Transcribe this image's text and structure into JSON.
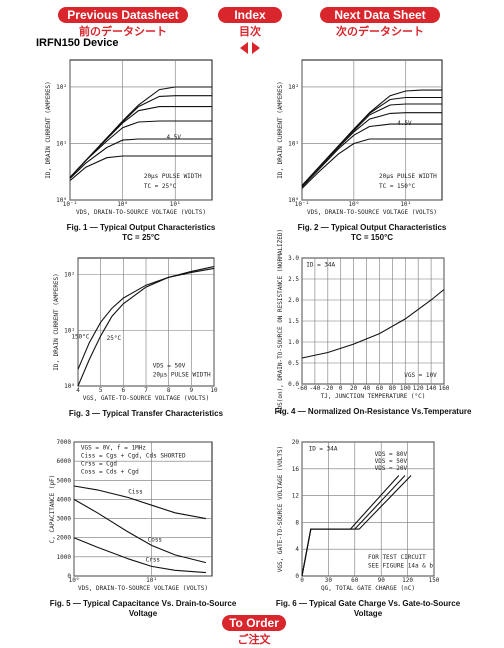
{
  "nav": {
    "previous": "Previous Datasheet",
    "previous_jp": "前のデータシート",
    "index": "Index",
    "index_jp": "目次",
    "next": "Next Data Sheet",
    "next_jp": "次のデータシート"
  },
  "device": "IRFN150 Device",
  "order": "To Order",
  "order_jp": "ご注文",
  "chart_data": [
    {
      "type": "line",
      "title": "Fig. 1 — Typical Output Characteristics",
      "subtitle": "TC = 25°C",
      "xlabel": "VDS, DRAIN-TO-SOURCE VOLTAGE (VOLTS)",
      "ylabel": "ID, DRAIN CURRENT (AMPERES)",
      "xlog": true,
      "ylog": true,
      "grid": true,
      "xlim": [
        0.1,
        50
      ],
      "ylim": [
        1,
        300
      ],
      "xticks": [
        {
          "value": 0.1,
          "label": "10⁻¹"
        },
        {
          "value": 1,
          "label": "10⁰"
        },
        {
          "value": 10,
          "label": "10¹"
        }
      ],
      "yticks": [
        {
          "value": 1,
          "label": "10⁰"
        },
        {
          "value": 10,
          "label": "10¹"
        },
        {
          "value": 100,
          "label": "10²"
        }
      ],
      "annotations": [
        "4.5V",
        "20μs PULSE WIDTH",
        "TC = 25°C"
      ],
      "x": [
        0.1,
        0.2,
        0.5,
        1,
        2,
        5,
        10,
        20,
        50
      ],
      "series": [
        {
          "color": "#111",
          "values": [
            2.2,
            3.8,
            5.6,
            6,
            6,
            6,
            6,
            6,
            6
          ]
        },
        {
          "color": "#111",
          "values": [
            2.4,
            4.5,
            8.5,
            11.5,
            12,
            12,
            12,
            12,
            12
          ]
        },
        {
          "color": "#111",
          "values": [
            2.5,
            5,
            11,
            19,
            24,
            25,
            25,
            25,
            25
          ]
        },
        {
          "color": "#111",
          "values": [
            2.5,
            5,
            12,
            23,
            38,
            45,
            45,
            45,
            45
          ]
        },
        {
          "color": "#111",
          "values": [
            2.5,
            5,
            12.5,
            24,
            45,
            68,
            70,
            70,
            70
          ]
        },
        {
          "color": "#111",
          "values": [
            2.5,
            5,
            12.5,
            25,
            48,
            90,
            100,
            100,
            100
          ]
        }
      ]
    },
    {
      "type": "line",
      "title": "Fig. 2 — Typical Output Characteristics",
      "subtitle": "TC = 150°C",
      "xlabel": "VDS, DRAIN-TO-SOURCE VOLTAGE (VOLTS)",
      "ylabel": "ID, DRAIN CURRENT (AMPERES)",
      "xlog": true,
      "ylog": true,
      "grid": true,
      "xlim": [
        0.1,
        50
      ],
      "ylim": [
        1,
        300
      ],
      "xticks": [
        {
          "value": 0.1,
          "label": "10⁻¹"
        },
        {
          "value": 1,
          "label": "10⁰"
        },
        {
          "value": 10,
          "label": "10¹"
        }
      ],
      "yticks": [
        {
          "value": 1,
          "label": "10⁰"
        },
        {
          "value": 10,
          "label": "10¹"
        },
        {
          "value": 100,
          "label": "10²"
        }
      ],
      "annotations": [
        "4.5V",
        "20μs PULSE WIDTH",
        "TC = 150°C"
      ],
      "x": [
        0.1,
        0.2,
        0.5,
        1,
        2,
        5,
        10,
        20,
        50
      ],
      "series": [
        {
          "color": "#111",
          "values": [
            1.6,
            3,
            6.5,
            10,
            12,
            12,
            12,
            12,
            12
          ]
        },
        {
          "color": "#111",
          "values": [
            1.7,
            3.3,
            8,
            14,
            20,
            22,
            22,
            22,
            22
          ]
        },
        {
          "color": "#111",
          "values": [
            1.8,
            3.5,
            8.5,
            16,
            27,
            34,
            35,
            35,
            35
          ]
        },
        {
          "color": "#111",
          "values": [
            1.8,
            3.6,
            9,
            17,
            32,
            48,
            50,
            50,
            50
          ]
        },
        {
          "color": "#111",
          "values": [
            1.8,
            3.6,
            9,
            18,
            34,
            60,
            65,
            65,
            65
          ]
        },
        {
          "color": "#111",
          "values": [
            1.8,
            3.6,
            9,
            18,
            35,
            70,
            85,
            88,
            88
          ]
        }
      ]
    },
    {
      "type": "line",
      "title": "Fig. 3 — Typical Transfer Characteristics",
      "xlabel": "VGS, GATE-TO-SOURCE VOLTAGE (VOLTS)",
      "ylabel": "ID, DRAIN CURRENT (AMPERES)",
      "ylog": true,
      "grid": true,
      "xlim": [
        4,
        10
      ],
      "ylim": [
        1,
        200
      ],
      "xticks": [
        4,
        5,
        6,
        7,
        8,
        9,
        10
      ],
      "yticks": [
        {
          "value": 1,
          "label": "10⁰"
        },
        {
          "value": 10,
          "label": "10¹"
        },
        {
          "value": 100,
          "label": "10²"
        }
      ],
      "annotations": [
        "VDS = 50V",
        "20μs PULSE WIDTH"
      ],
      "x": [
        4,
        4.5,
        5,
        5.5,
        6,
        7,
        8,
        9,
        10
      ],
      "series": [
        {
          "name": "150°C",
          "color": "#111",
          "values": [
            2,
            6,
            14,
            25,
            38,
            65,
            90,
            110,
            130
          ]
        },
        {
          "name": "25°C",
          "color": "#111",
          "values": [
            1,
            3,
            8,
            18,
            30,
            60,
            90,
            115,
            140
          ]
        }
      ]
    },
    {
      "type": "line",
      "title": "Fig. 4 — Normalized On-Resistance Vs.Temperature",
      "xlabel": "TJ, JUNCTION TEMPERATURE (°C)",
      "ylabel": "RDS(on), DRAIN-TO-SOURCE ON RESISTANCE (NORMALIZED)",
      "grid": true,
      "xlim": [
        -60,
        160
      ],
      "ylim": [
        0,
        3
      ],
      "xticks": [
        -60,
        -40,
        -20,
        0,
        20,
        40,
        60,
        80,
        100,
        120,
        140,
        160
      ],
      "yticks": [
        {
          "value": 0,
          "label": "0.0"
        },
        0.5,
        {
          "value": 1,
          "label": "1.0"
        },
        1.5,
        {
          "value": 2,
          "label": "2.0"
        },
        2.5,
        {
          "value": 3,
          "label": "3.0"
        }
      ],
      "annotations": [
        "ID = 34A",
        "VGS = 10V"
      ],
      "x": [
        -60,
        -20,
        20,
        60,
        100,
        140,
        160
      ],
      "series": [
        {
          "color": "#111",
          "values": [
            0.62,
            0.75,
            0.95,
            1.2,
            1.55,
            2.0,
            2.25
          ]
        }
      ]
    },
    {
      "type": "line",
      "title": "Fig. 5 — Typical Capacitance Vs. Drain-to-Source",
      "subtitle": "Voltage",
      "xlabel": "VDS, DRAIN-TO-SOURCE VOLTAGE (VOLTS)",
      "ylabel": "C, CAPACITANCE (pF)",
      "xlog": true,
      "grid": true,
      "xlim": [
        1,
        60
      ],
      "ylim": [
        0,
        7000
      ],
      "xticks": [
        {
          "value": 1,
          "label": "10⁰"
        },
        {
          "value": 10,
          "label": "10¹"
        }
      ],
      "yticks": [
        0,
        1000,
        2000,
        3000,
        4000,
        5000,
        6000,
        7000
      ],
      "annotations": [
        "VGS = 0V,  f = 1MHz",
        "Ciss = Cgs + Cgd, Cds SHORTED",
        "Crss = Cgd",
        "Coss = Cds + Cgd"
      ],
      "x": [
        1,
        2,
        5,
        10,
        20,
        50
      ],
      "series": [
        {
          "name": "Ciss",
          "color": "#111",
          "values": [
            4700,
            4500,
            4100,
            3700,
            3300,
            3000
          ]
        },
        {
          "name": "Coss",
          "color": "#111",
          "values": [
            4000,
            3300,
            2300,
            1600,
            1100,
            700
          ]
        },
        {
          "name": "Crss",
          "color": "#111",
          "values": [
            2000,
            1500,
            900,
            500,
            300,
            180
          ]
        }
      ]
    },
    {
      "type": "line",
      "title": "Fig. 6 — Typical Gate Charge Vs. Gate-to-Source",
      "subtitle": "Voltage",
      "xlabel": "QG, TOTAL GATE CHARGE (nC)",
      "ylabel": "VGS, GATE-TO-SOURCE VOLTAGE (VOLTS)",
      "grid": true,
      "xlim": [
        0,
        150
      ],
      "ylim": [
        0,
        20
      ],
      "xticks": [
        0,
        30,
        60,
        90,
        120,
        150
      ],
      "yticks": [
        0,
        4,
        8,
        12,
        16,
        20
      ],
      "annotations": [
        "ID = 34A",
        "FOR TEST CIRCUIT",
        "SEE FIGURE 14a & b"
      ],
      "series": [
        {
          "name": "VDS = 80V",
          "color": "#111",
          "x": [
            0,
            10,
            65,
            124
          ],
          "values": [
            0,
            7,
            7,
            15
          ]
        },
        {
          "name": "VDS = 50V",
          "color": "#111",
          "x": [
            0,
            10,
            60,
            117
          ],
          "values": [
            0,
            7,
            7,
            15
          ]
        },
        {
          "name": "VDS = 20V",
          "color": "#111",
          "x": [
            0,
            10,
            55,
            110
          ],
          "values": [
            0,
            7,
            7,
            15
          ]
        }
      ]
    }
  ]
}
